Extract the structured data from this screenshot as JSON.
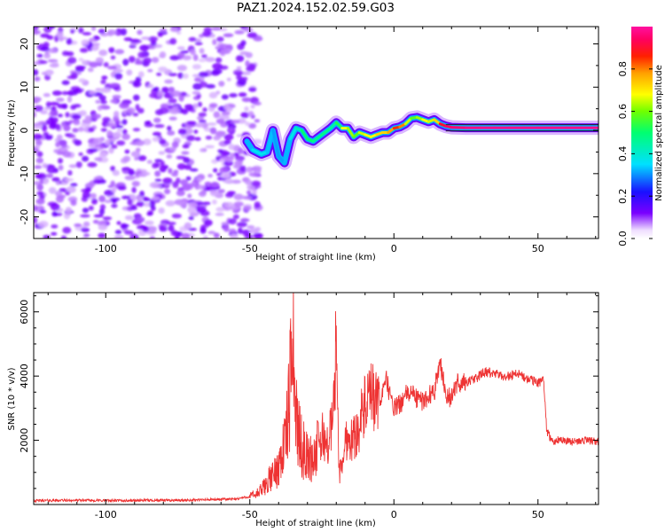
{
  "title": "PAZ1.2024.152.02.59.G03",
  "colors": {
    "snr_line": "#ee3333",
    "axes": "#000000",
    "background": "#ffffff"
  },
  "chart_data": [
    {
      "type": "heatmap",
      "title": "PAZ1.2024.152.02.59.G03",
      "xlabel": "Height of straight line (km)",
      "ylabel": "Frequency (Hz)",
      "xlim": [
        -125,
        71
      ],
      "ylim": [
        -25,
        24
      ],
      "x_ticks": [
        -100,
        -50,
        0,
        50
      ],
      "x_tick_labels": [
        "-100",
        "-50",
        "0",
        "50"
      ],
      "y_ticks": [
        -20,
        -10,
        0,
        10,
        20
      ],
      "y_tick_labels": [
        "-20",
        "-10",
        "0",
        "10",
        "20"
      ],
      "colorbar": {
        "label": "Normalized spectral amplitude",
        "range": [
          0,
          1
        ],
        "ticks": [
          0.0,
          0.2,
          0.4,
          0.6,
          0.8
        ],
        "tick_labels": [
          "0.0",
          "0.2",
          "0.4",
          "0.6",
          "0.8"
        ],
        "colormap": "white-purple-blue-cyan-green-yellow-red-magenta"
      },
      "noise_region_x": [
        -125,
        -50
      ],
      "ridge": {
        "x": [
          -51,
          -49,
          -46,
          -44,
          -42,
          -40,
          -38,
          -36,
          -34,
          -32,
          -30,
          -28,
          -26,
          -24,
          -22,
          -20,
          -18,
          -16,
          -14,
          -12,
          -10,
          -8,
          -6,
          -4,
          -2,
          0,
          2,
          4,
          6,
          8,
          10,
          12,
          14,
          16,
          18,
          20,
          25,
          30,
          35,
          40,
          45,
          50,
          55,
          60,
          65,
          71
        ],
        "y": [
          -2.5,
          -4.5,
          -5.5,
          -5.0,
          0.0,
          -6.0,
          -7.5,
          -2.0,
          0.5,
          0.0,
          -2.0,
          -2.5,
          -1.5,
          -0.5,
          0.5,
          1.8,
          0.5,
          0.5,
          -1.5,
          -0.5,
          -1.0,
          -1.5,
          -1.0,
          -0.5,
          -0.5,
          0.5,
          0.8,
          1.5,
          2.8,
          3.0,
          2.5,
          2.0,
          2.5,
          1.5,
          1.0,
          0.7,
          0.6,
          0.6,
          0.6,
          0.6,
          0.6,
          0.6,
          0.6,
          0.6,
          0.6,
          0.6
        ],
        "amplitude": [
          0.3,
          0.35,
          0.38,
          0.36,
          0.3,
          0.32,
          0.3,
          0.35,
          0.4,
          0.45,
          0.55,
          0.45,
          0.5,
          0.45,
          0.5,
          0.4,
          0.65,
          0.7,
          0.55,
          0.6,
          0.7,
          0.65,
          0.7,
          0.75,
          0.7,
          0.85,
          0.85,
          0.75,
          0.55,
          0.6,
          0.65,
          0.7,
          0.6,
          0.85,
          0.95,
          0.95,
          0.97,
          0.98,
          0.98,
          0.98,
          0.98,
          0.98,
          0.98,
          0.98,
          0.98,
          0.98
        ]
      }
    },
    {
      "type": "line",
      "xlabel": "Height of straight line (km)",
      "ylabel": "SNR (10 * v/v)",
      "xlim": [
        -125,
        71
      ],
      "ylim": [
        0,
        6600
      ],
      "x_ticks": [
        -100,
        -50,
        0,
        50
      ],
      "x_tick_labels": [
        "-100",
        "-50",
        "0",
        "50"
      ],
      "y_ticks": [
        2000,
        4000,
        6000
      ],
      "y_tick_labels": [
        "2000",
        "4000",
        "6000"
      ],
      "series": [
        {
          "x": [
            -125,
            -115,
            -105,
            -95,
            -85,
            -75,
            -65,
            -55,
            -50,
            -47,
            -45,
            -43,
            -41,
            -39,
            -37,
            -35.5,
            -35,
            -34.5,
            -33,
            -31,
            -29,
            -27,
            -25,
            -23,
            -21,
            -20,
            -19,
            -17.5,
            -16.5,
            -15,
            -13,
            -11,
            -9,
            -7,
            -5,
            -3,
            -1,
            0,
            2,
            4,
            6,
            8,
            10,
            12,
            14,
            16,
            18,
            20,
            22,
            25,
            28,
            31,
            34,
            37,
            40,
            43,
            46,
            50,
            52,
            53,
            55,
            58,
            62,
            66,
            71
          ],
          "y": [
            120,
            130,
            130,
            120,
            130,
            130,
            150,
            170,
            250,
            350,
            550,
            800,
            1000,
            1500,
            2400,
            4200,
            6500,
            3400,
            2100,
            1600,
            1400,
            1600,
            2200,
            1800,
            2800,
            5200,
            900,
            1500,
            2100,
            2000,
            2200,
            2800,
            3200,
            3300,
            3100,
            4000,
            3300,
            3000,
            3100,
            3400,
            3500,
            3300,
            3200,
            3400,
            3500,
            4500,
            3400,
            3300,
            3800,
            3800,
            3900,
            4100,
            4100,
            4000,
            4000,
            4100,
            3900,
            3800,
            3900,
            2300,
            1950,
            2050,
            1950,
            2000,
            1950
          ]
        }
      ]
    }
  ]
}
